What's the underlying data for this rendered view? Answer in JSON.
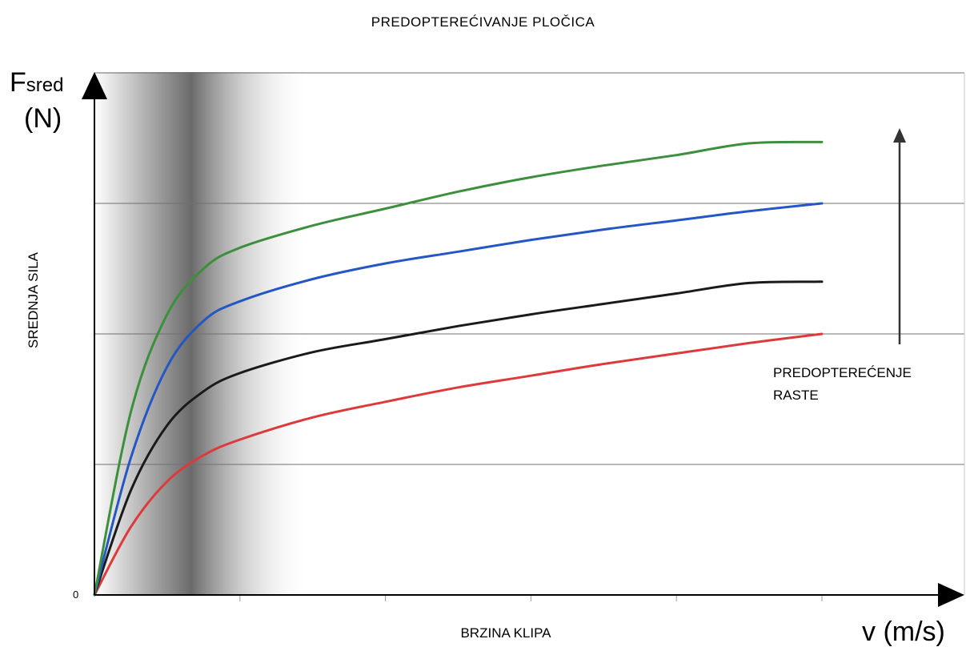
{
  "chart_data": {
    "type": "line",
    "title": "PREDOPTEREĆIVANJE PLOČICA",
    "ylabel": "SREDNJA SILA",
    "yvar": "F",
    "yvar_sub": "sred",
    "yunit": "(N)",
    "xlabel": "BRZINA KLIPA",
    "xunit": "v (m/s)",
    "origin_label": "0",
    "annotation_line1": "PREDOPTEREĆENJE",
    "annotation_line2": "RASTE",
    "xlim": [
      0,
      1
    ],
    "ylim": [
      0,
      4
    ],
    "x_ticks": [
      0.2,
      0.4,
      0.6,
      0.8,
      1.0
    ],
    "y_gridlines": [
      1,
      2,
      3,
      4
    ],
    "grid": true,
    "series": [
      {
        "color": "#dd3a3c",
        "x": [
          0,
          0.05,
          0.1,
          0.15,
          0.2,
          0.3,
          0.4,
          0.5,
          0.6,
          0.7,
          0.8,
          0.9,
          1.0
        ],
        "values": [
          0,
          0.52,
          0.87,
          1.07,
          1.19,
          1.36,
          1.48,
          1.59,
          1.68,
          1.77,
          1.85,
          1.93,
          2.0
        ]
      },
      {
        "color": "#1a1a1a",
        "x": [
          0,
          0.05,
          0.1,
          0.15,
          0.2,
          0.3,
          0.4,
          0.5,
          0.6,
          0.7,
          0.8,
          0.9,
          1.0
        ],
        "values": [
          0,
          0.8,
          1.3,
          1.56,
          1.7,
          1.86,
          1.96,
          2.06,
          2.15,
          2.23,
          2.31,
          2.39,
          2.4
        ]
      },
      {
        "color": "#2457c4",
        "x": [
          0,
          0.05,
          0.1,
          0.15,
          0.2,
          0.3,
          0.4,
          0.5,
          0.6,
          0.7,
          0.8,
          0.9,
          1.0
        ],
        "values": [
          0,
          1.05,
          1.75,
          2.1,
          2.25,
          2.42,
          2.54,
          2.63,
          2.72,
          2.8,
          2.87,
          2.94,
          3.0
        ]
      },
      {
        "color": "#3c8f3c",
        "x": [
          0,
          0.05,
          0.1,
          0.15,
          0.2,
          0.3,
          0.4,
          0.5,
          0.6,
          0.7,
          0.8,
          0.9,
          1.0
        ],
        "values": [
          0,
          1.4,
          2.15,
          2.5,
          2.66,
          2.83,
          2.96,
          3.09,
          3.2,
          3.29,
          3.37,
          3.46,
          3.47
        ]
      }
    ],
    "colors": {
      "axis": "#000000",
      "grid": "#707070",
      "shade": "#808080"
    }
  }
}
